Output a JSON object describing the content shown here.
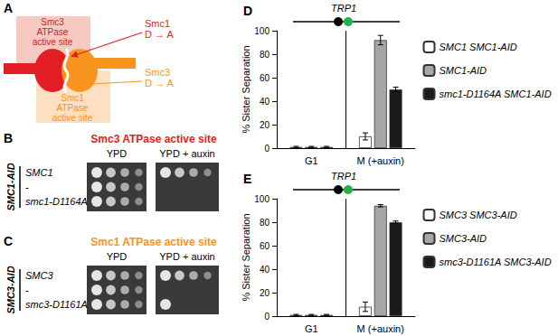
{
  "figure": {
    "A": {
      "label": "A",
      "smc3_site": [
        "Smc3",
        "ATPase",
        "active site"
      ],
      "smc1_mutation": [
        "Smc1",
        "D → A"
      ],
      "smc3_mutation": [
        "Smc3",
        "D → A"
      ],
      "smc1_site": [
        "Smc1",
        "ATPase",
        "active site"
      ]
    },
    "B": {
      "label": "B",
      "title": "Smc3 ATPase active site",
      "color": "#d7261e",
      "strain_label": "SMC1-AID",
      "rows": [
        "SMC1",
        "-",
        "smc1-D1164A"
      ],
      "plates": [
        {
          "name": "YPD",
          "growth": [
            4,
            4,
            4
          ]
        },
        {
          "name": "YPD + auxin",
          "growth": [
            4,
            0,
            0
          ]
        }
      ]
    },
    "C": {
      "label": "C",
      "title": "Smc1 ATPase active site",
      "color": "#f7941d",
      "strain_label": "SMC3-AID",
      "rows": [
        "SMC3",
        "-",
        "smc3-D1161A"
      ],
      "plates": [
        {
          "name": "YPD",
          "growth": [
            4,
            4,
            4
          ]
        },
        {
          "name": "YPD + auxin",
          "growth": [
            4,
            0,
            1
          ]
        }
      ]
    }
  },
  "chart_data": [
    {
      "type": "bar",
      "title": "D",
      "subtitle": "TRP1",
      "y_label": "% Sister Separation",
      "categories": [
        "G1",
        "M (+auxin)"
      ],
      "series": [
        {
          "name": "SMC1 SMC1-AID",
          "color": "#ffffff",
          "values": [
            1,
            10
          ],
          "errors": [
            0.5,
            3
          ]
        },
        {
          "name": "SMC1-AID",
          "color": "#a6a6a6",
          "values": [
            1,
            92
          ],
          "errors": [
            0.5,
            4
          ]
        },
        {
          "name": "smc1-D1164A SMC1-AID",
          "color": "#1a1a1a",
          "values": [
            1,
            50
          ],
          "errors": [
            0.5,
            2
          ]
        }
      ],
      "ylim": [
        0,
        100
      ],
      "yticks": [
        0,
        20,
        40,
        60,
        80,
        100
      ],
      "grid": false,
      "legend": "right"
    },
    {
      "type": "bar",
      "title": "E",
      "subtitle": "TRP1",
      "y_label": "% Sister Separation",
      "categories": [
        "G1",
        "M (+auxin)"
      ],
      "series": [
        {
          "name": "SMC3 SMC3-AID",
          "color": "#ffffff",
          "values": [
            1,
            8
          ],
          "errors": [
            0.5,
            4
          ]
        },
        {
          "name": "SMC3-AID",
          "color": "#a6a6a6",
          "values": [
            1,
            94
          ],
          "errors": [
            0.5,
            1
          ]
        },
        {
          "name": "smc3-D1161A SMC3-AID",
          "color": "#1a1a1a",
          "values": [
            1,
            80
          ],
          "errors": [
            0.5,
            1
          ]
        }
      ],
      "ylim": [
        0,
        100
      ],
      "yticks": [
        0,
        20,
        40,
        60,
        80,
        100
      ],
      "grid": false,
      "legend": "right"
    }
  ]
}
